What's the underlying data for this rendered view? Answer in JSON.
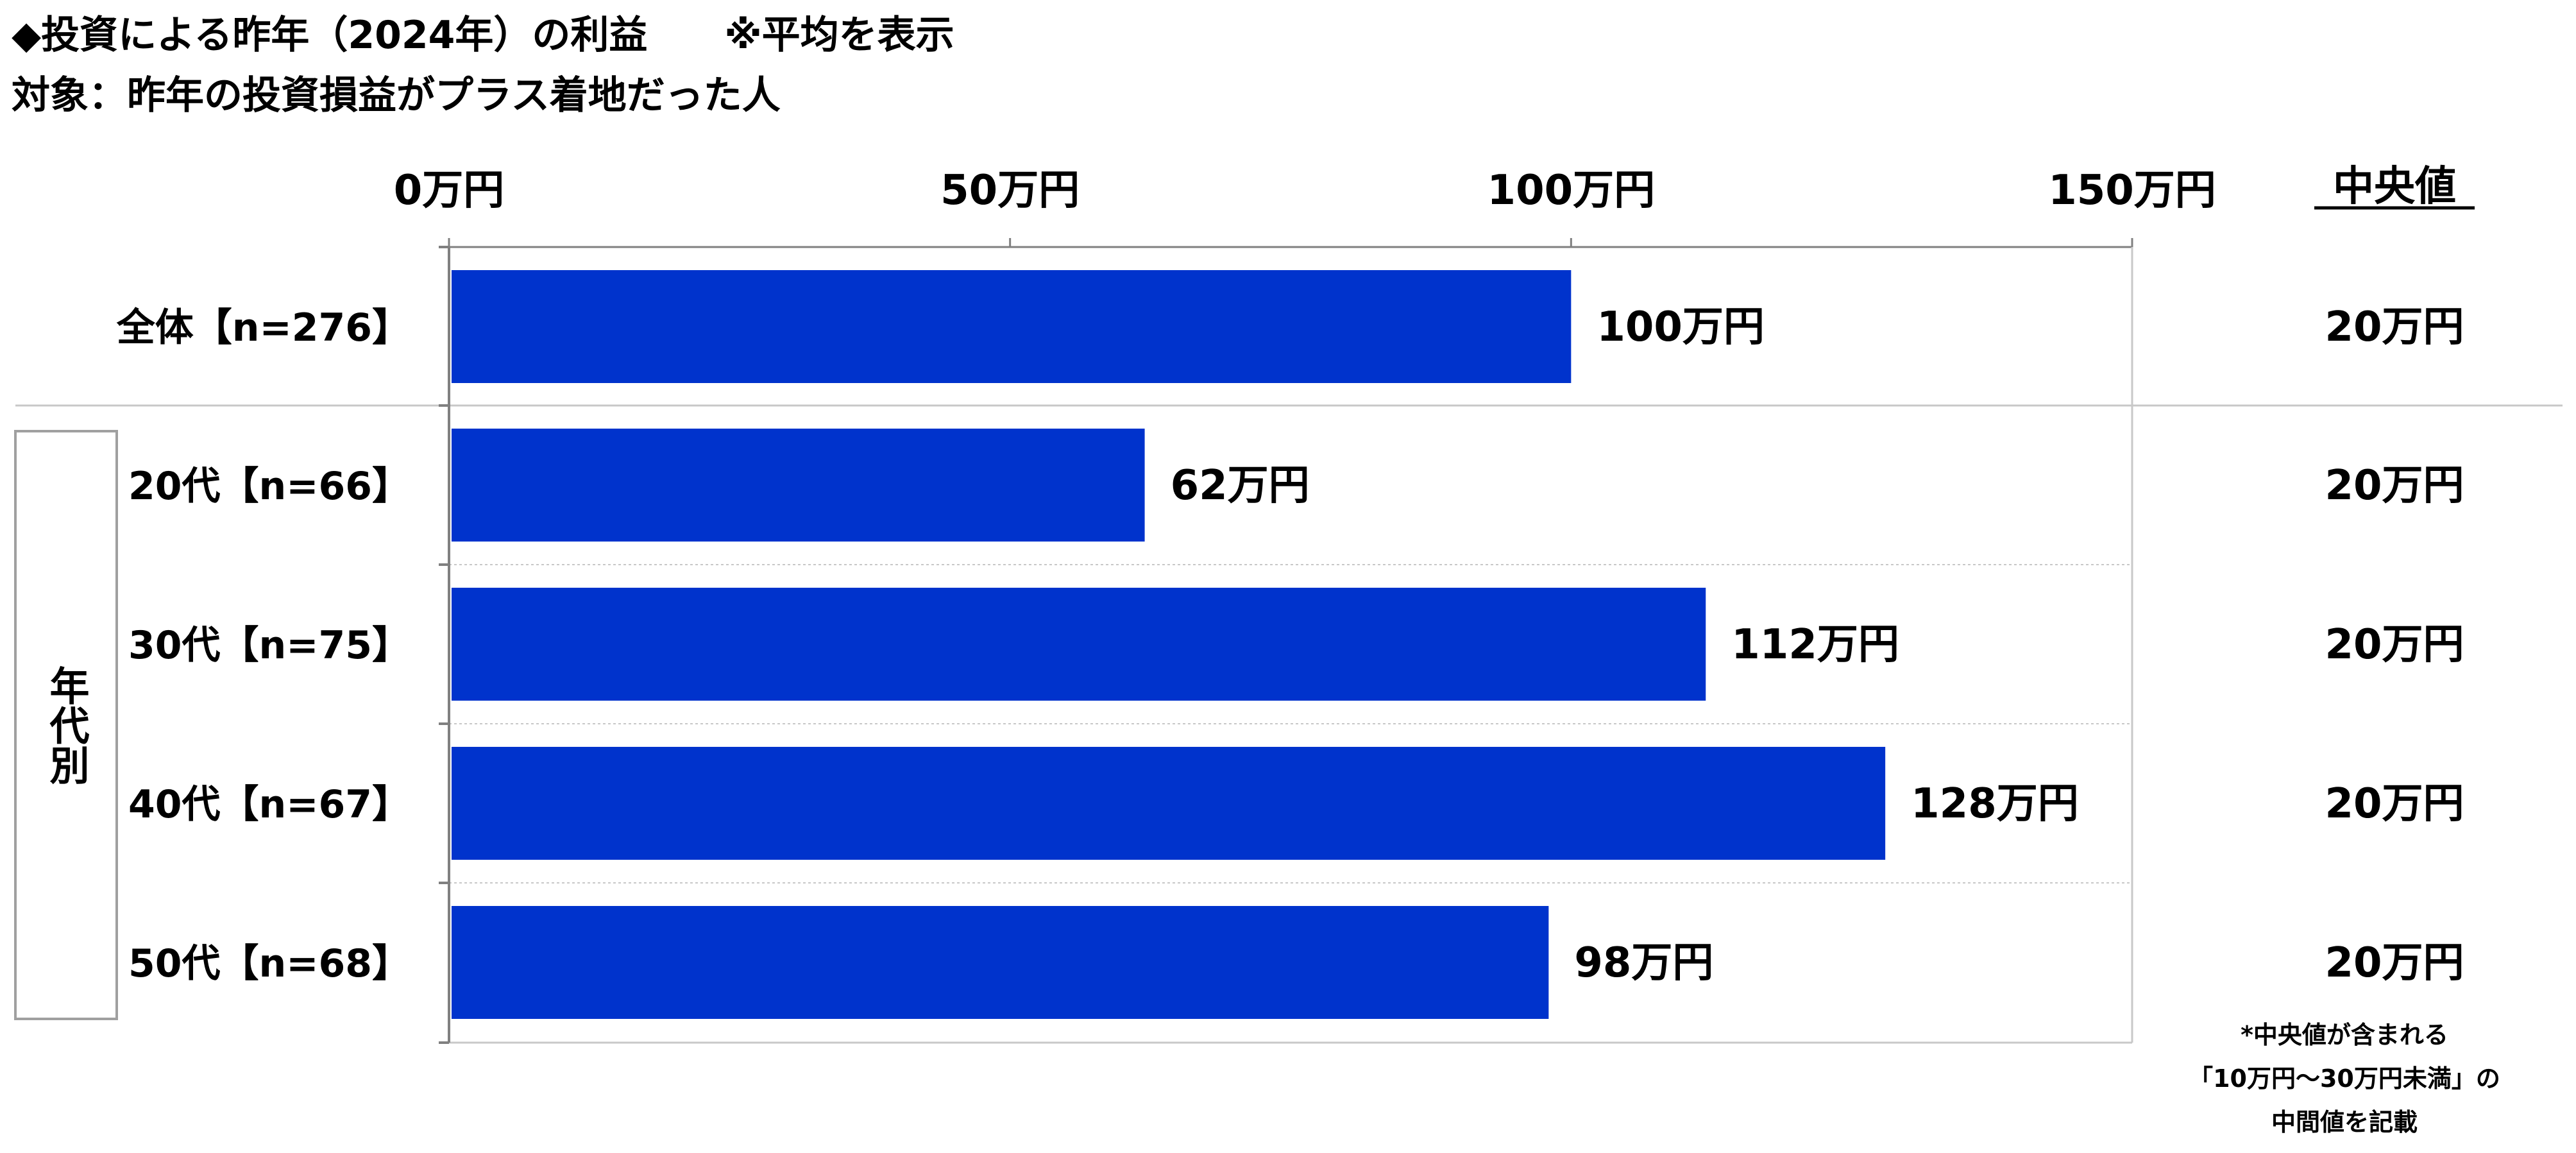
{
  "title": "◆投資による昨年（2024年）の利益　　※平均を表示",
  "subtitle": "対象：昨年の投資損益がプラス着地だった人",
  "median_header": "中央値",
  "group_label": "年代別",
  "footnote": [
    "*中央値が含まれる",
    "「10万円～30万円未満」の",
    "中間値を記載"
  ],
  "colors": {
    "bar": "#0033CC",
    "axis": "#808080",
    "gridline": "#C8C8C8",
    "group_box": "#A0A0A0"
  },
  "chart_data": {
    "type": "bar",
    "orientation": "horizontal",
    "xlim": [
      0,
      150
    ],
    "ticks": [
      {
        "value": 0,
        "label": "0万円"
      },
      {
        "value": 50,
        "label": "50万円"
      },
      {
        "value": 100,
        "label": "100万円"
      },
      {
        "value": 150,
        "label": "150万円"
      }
    ],
    "categories": [
      "全体【n=276】",
      "20代【n=66】",
      "30代【n=75】",
      "40代【n=67】",
      "50代【n=68】"
    ],
    "values": [
      100,
      62,
      112,
      128,
      98
    ],
    "value_labels": [
      "100万円",
      "62万円",
      "112万円",
      "128万円",
      "98万円"
    ],
    "medians": [
      "20万円",
      "20万円",
      "20万円",
      "20万円",
      "20万円"
    ],
    "grid": true,
    "legend": "none"
  }
}
